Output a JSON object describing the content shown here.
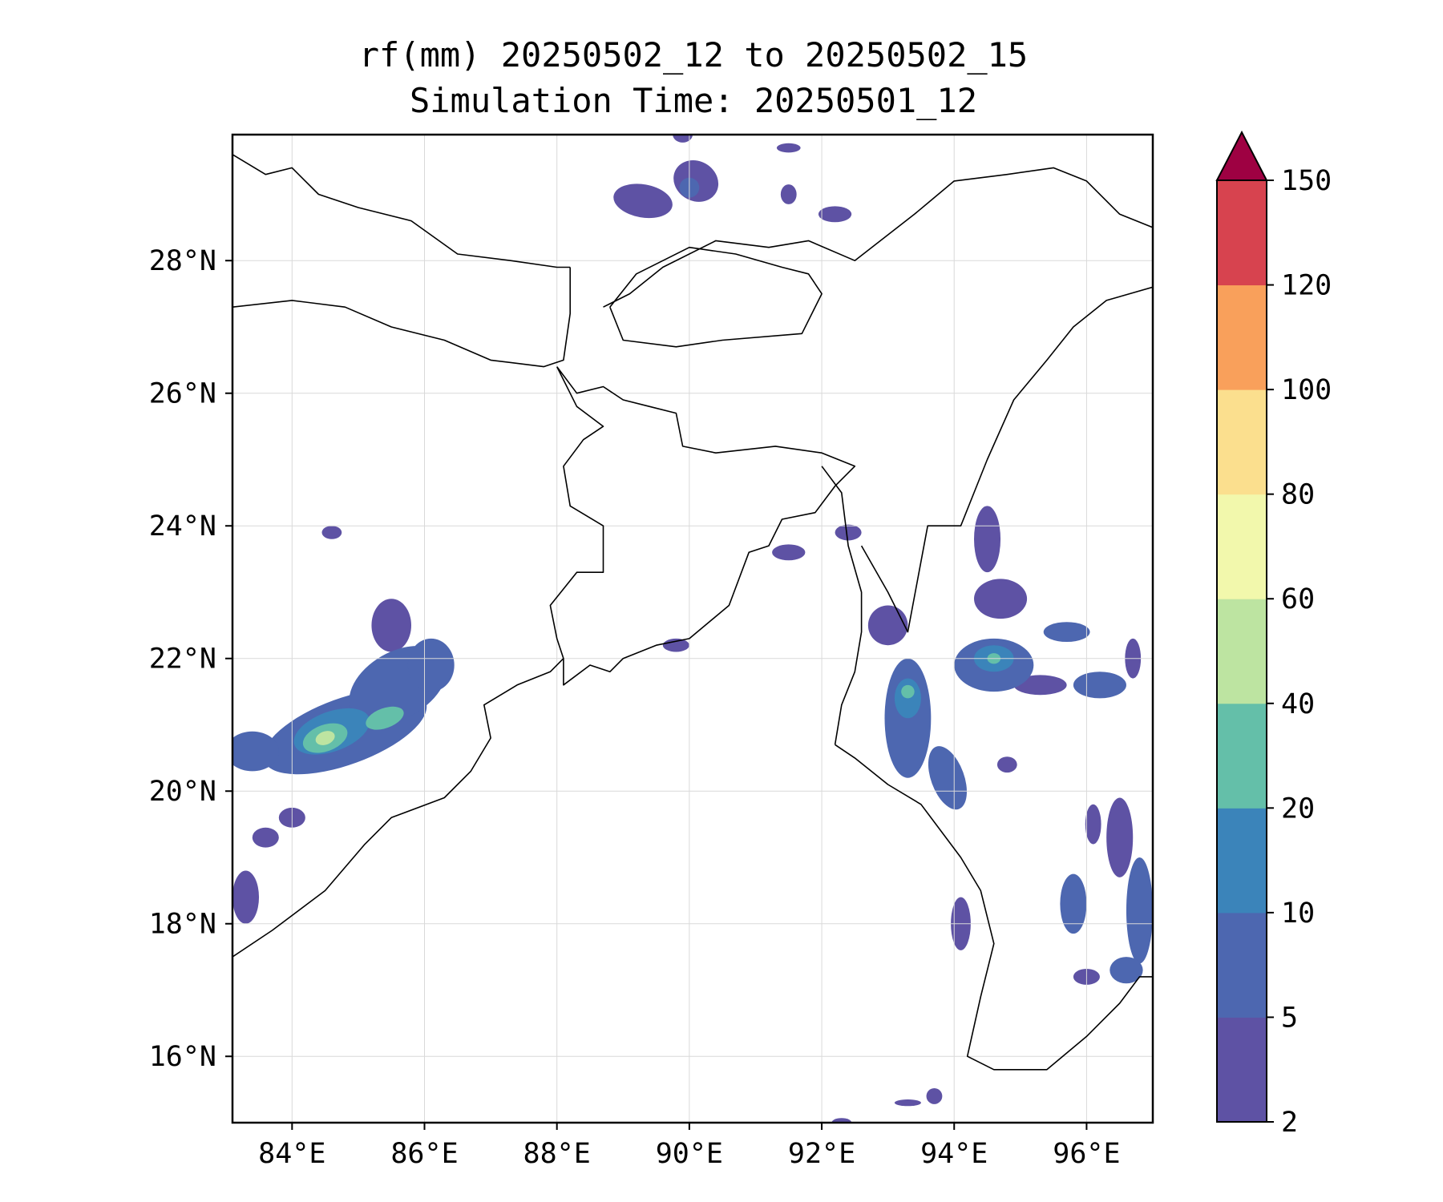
{
  "chart_data": {
    "type": "heatmap",
    "title": "rf(mm) 20250502_12 to 20250502_15",
    "subtitle": "Simulation Time: 20250501_12",
    "xlabel": "",
    "ylabel": "",
    "xlim": [
      83.1,
      97.0
    ],
    "ylim": [
      15.0,
      29.9
    ],
    "grid": true,
    "x_ticks": [
      {
        "value": 84,
        "label": "84°E"
      },
      {
        "value": 86,
        "label": "86°E"
      },
      {
        "value": 88,
        "label": "88°E"
      },
      {
        "value": 90,
        "label": "90°E"
      },
      {
        "value": 92,
        "label": "92°E"
      },
      {
        "value": 94,
        "label": "94°E"
      },
      {
        "value": 96,
        "label": "96°E"
      }
    ],
    "y_ticks": [
      {
        "value": 16,
        "label": "16°N"
      },
      {
        "value": 18,
        "label": "18°N"
      },
      {
        "value": 20,
        "label": "20°N"
      },
      {
        "value": 22,
        "label": "22°N"
      },
      {
        "value": 24,
        "label": "24°N"
      },
      {
        "value": 26,
        "label": "26°N"
      },
      {
        "value": 28,
        "label": "28°N"
      }
    ],
    "colorbar": {
      "levels": [
        2,
        5,
        10,
        20,
        40,
        60,
        80,
        100,
        120,
        150
      ],
      "labels": [
        "2",
        "5",
        "10",
        "20",
        "40",
        "60",
        "80",
        "100",
        "120",
        "150"
      ],
      "colors": [
        "#5e52a4",
        "#4d67b0",
        "#3b84ba",
        "#64bfa9",
        "#bde4a1",
        "#f2f8ac",
        "#fbdf8e",
        "#f9a05b",
        "#d7434f"
      ],
      "extend_color": "#9e0142"
    },
    "rain_cells": [
      {
        "lon": 84.8,
        "lat": 20.9,
        "rx": 1.3,
        "ry": 0.5,
        "rot": -20,
        "level": 1
      },
      {
        "lon": 85.6,
        "lat": 21.6,
        "rx": 0.8,
        "ry": 0.5,
        "rot": -30,
        "level": 1
      },
      {
        "lon": 84.6,
        "lat": 20.9,
        "rx": 0.6,
        "ry": 0.3,
        "rot": -20,
        "level": 2
      },
      {
        "lon": 84.5,
        "lat": 20.8,
        "rx": 0.35,
        "ry": 0.2,
        "rot": -20,
        "level": 3
      },
      {
        "lon": 84.5,
        "lat": 20.8,
        "rx": 0.15,
        "ry": 0.1,
        "rot": -20,
        "level": 4
      },
      {
        "lon": 85.4,
        "lat": 21.1,
        "rx": 0.3,
        "ry": 0.15,
        "rot": -20,
        "level": 3
      },
      {
        "lon": 83.4,
        "lat": 20.6,
        "rx": 0.4,
        "ry": 0.3,
        "rot": 0,
        "level": 1
      },
      {
        "lon": 86.1,
        "lat": 21.9,
        "rx": 0.35,
        "ry": 0.4,
        "rot": 0,
        "level": 1
      },
      {
        "lon": 85.5,
        "lat": 22.5,
        "rx": 0.3,
        "ry": 0.4,
        "rot": 0,
        "level": 0
      },
      {
        "lon": 83.3,
        "lat": 18.4,
        "rx": 0.2,
        "ry": 0.4,
        "rot": 0,
        "level": 0
      },
      {
        "lon": 83.6,
        "lat": 19.3,
        "rx": 0.2,
        "ry": 0.15,
        "rot": 0,
        "level": 0
      },
      {
        "lon": 84.0,
        "lat": 19.6,
        "rx": 0.2,
        "ry": 0.15,
        "rot": 0,
        "level": 0
      },
      {
        "lon": 84.6,
        "lat": 23.9,
        "rx": 0.15,
        "ry": 0.1,
        "rot": 0,
        "level": 0
      },
      {
        "lon": 93.3,
        "lat": 21.1,
        "rx": 0.35,
        "ry": 0.9,
        "rot": 0,
        "level": 1
      },
      {
        "lon": 93.3,
        "lat": 21.4,
        "rx": 0.2,
        "ry": 0.3,
        "rot": 0,
        "level": 2
      },
      {
        "lon": 93.3,
        "lat": 21.5,
        "rx": 0.1,
        "ry": 0.1,
        "rot": 0,
        "level": 3
      },
      {
        "lon": 93.9,
        "lat": 20.2,
        "rx": 0.25,
        "ry": 0.5,
        "rot": -20,
        "level": 1
      },
      {
        "lon": 93.0,
        "lat": 22.5,
        "rx": 0.3,
        "ry": 0.3,
        "rot": 0,
        "level": 0
      },
      {
        "lon": 94.6,
        "lat": 21.9,
        "rx": 0.6,
        "ry": 0.4,
        "rot": 0,
        "level": 1
      },
      {
        "lon": 94.6,
        "lat": 22.0,
        "rx": 0.3,
        "ry": 0.2,
        "rot": 0,
        "level": 2
      },
      {
        "lon": 94.6,
        "lat": 22.0,
        "rx": 0.1,
        "ry": 0.08,
        "rot": 0,
        "level": 3
      },
      {
        "lon": 94.7,
        "lat": 22.9,
        "rx": 0.4,
        "ry": 0.3,
        "rot": 0,
        "level": 0
      },
      {
        "lon": 94.5,
        "lat": 23.8,
        "rx": 0.2,
        "ry": 0.5,
        "rot": 0,
        "level": 0
      },
      {
        "lon": 95.7,
        "lat": 22.4,
        "rx": 0.35,
        "ry": 0.15,
        "rot": 0,
        "level": 1
      },
      {
        "lon": 96.2,
        "lat": 21.6,
        "rx": 0.4,
        "ry": 0.2,
        "rot": 0,
        "level": 1
      },
      {
        "lon": 96.7,
        "lat": 22.0,
        "rx": 0.12,
        "ry": 0.3,
        "rot": 0,
        "level": 0
      },
      {
        "lon": 95.3,
        "lat": 21.6,
        "rx": 0.4,
        "ry": 0.15,
        "rot": 0,
        "level": 0
      },
      {
        "lon": 95.8,
        "lat": 18.3,
        "rx": 0.2,
        "ry": 0.45,
        "rot": 0,
        "level": 1
      },
      {
        "lon": 96.8,
        "lat": 18.2,
        "rx": 0.2,
        "ry": 0.8,
        "rot": 0,
        "level": 1
      },
      {
        "lon": 96.5,
        "lat": 19.3,
        "rx": 0.2,
        "ry": 0.6,
        "rot": 0,
        "level": 0
      },
      {
        "lon": 96.1,
        "lat": 19.5,
        "rx": 0.12,
        "ry": 0.3,
        "rot": 0,
        "level": 0
      },
      {
        "lon": 96.6,
        "lat": 17.3,
        "rx": 0.25,
        "ry": 0.2,
        "rot": 0,
        "level": 1
      },
      {
        "lon": 96.0,
        "lat": 17.2,
        "rx": 0.2,
        "ry": 0.12,
        "rot": 0,
        "level": 0
      },
      {
        "lon": 94.1,
        "lat": 18.0,
        "rx": 0.15,
        "ry": 0.4,
        "rot": 0,
        "level": 0
      },
      {
        "lon": 94.8,
        "lat": 20.4,
        "rx": 0.15,
        "ry": 0.12,
        "rot": 0,
        "level": 0
      },
      {
        "lon": 89.3,
        "lat": 28.9,
        "rx": 0.45,
        "ry": 0.25,
        "rot": 10,
        "level": 0
      },
      {
        "lon": 90.1,
        "lat": 29.2,
        "rx": 0.35,
        "ry": 0.3,
        "rot": 30,
        "level": 0
      },
      {
        "lon": 90.0,
        "lat": 29.1,
        "rx": 0.15,
        "ry": 0.15,
        "rot": 30,
        "level": 1
      },
      {
        "lon": 92.2,
        "lat": 28.7,
        "rx": 0.25,
        "ry": 0.12,
        "rot": 0,
        "level": 0
      },
      {
        "lon": 91.5,
        "lat": 29.0,
        "rx": 0.12,
        "ry": 0.15,
        "rot": 0,
        "level": 0
      },
      {
        "lon": 91.5,
        "lat": 29.7,
        "rx": 0.18,
        "ry": 0.07,
        "rot": 0,
        "level": 0
      },
      {
        "lon": 89.9,
        "lat": 29.9,
        "rx": 0.15,
        "ry": 0.12,
        "rot": 0,
        "level": 0
      },
      {
        "lon": 92.4,
        "lat": 23.9,
        "rx": 0.2,
        "ry": 0.12,
        "rot": 0,
        "level": 0
      },
      {
        "lon": 91.5,
        "lat": 23.6,
        "rx": 0.25,
        "ry": 0.12,
        "rot": 0,
        "level": 0
      },
      {
        "lon": 89.8,
        "lat": 22.2,
        "rx": 0.2,
        "ry": 0.1,
        "rot": 0,
        "level": 0
      },
      {
        "lon": 93.7,
        "lat": 15.4,
        "rx": 0.12,
        "ry": 0.12,
        "rot": 0,
        "level": 0
      },
      {
        "lon": 92.3,
        "lat": 15.0,
        "rx": 0.15,
        "ry": 0.07,
        "rot": 0,
        "level": 0
      },
      {
        "lon": 93.3,
        "lat": 15.3,
        "rx": 0.2,
        "ry": 0.05,
        "rot": 0,
        "level": 0
      }
    ],
    "boundaries": [
      [
        [
          83.1,
          29.6
        ],
        [
          83.6,
          29.3
        ],
        [
          84.0,
          29.4
        ],
        [
          84.4,
          29.0
        ],
        [
          85.0,
          28.8
        ],
        [
          85.8,
          28.6
        ],
        [
          86.5,
          28.1
        ],
        [
          87.3,
          28.0
        ],
        [
          88.0,
          27.9
        ],
        [
          88.2,
          27.9
        ]
      ],
      [
        [
          83.1,
          27.3
        ],
        [
          84.0,
          27.4
        ],
        [
          84.8,
          27.3
        ],
        [
          85.5,
          27.0
        ],
        [
          86.3,
          26.8
        ],
        [
          87.0,
          26.5
        ],
        [
          87.8,
          26.4
        ],
        [
          88.1,
          26.5
        ],
        [
          88.2,
          27.2
        ],
        [
          88.2,
          27.9
        ]
      ],
      [
        [
          88.8,
          27.3
        ],
        [
          89.2,
          27.8
        ],
        [
          90.0,
          28.2
        ],
        [
          90.7,
          28.1
        ],
        [
          91.4,
          27.9
        ],
        [
          91.8,
          27.8
        ],
        [
          92.0,
          27.5
        ],
        [
          91.7,
          26.9
        ],
        [
          90.5,
          26.8
        ],
        [
          89.8,
          26.7
        ],
        [
          89.0,
          26.8
        ],
        [
          88.8,
          27.3
        ]
      ],
      [
        [
          88.7,
          27.3
        ],
        [
          89.1,
          27.5
        ],
        [
          89.6,
          27.9
        ],
        [
          90.4,
          28.3
        ],
        [
          91.2,
          28.2
        ],
        [
          91.8,
          28.3
        ],
        [
          92.5,
          28.0
        ],
        [
          93.4,
          28.7
        ],
        [
          94.0,
          29.2
        ],
        [
          94.8,
          29.3
        ],
        [
          95.5,
          29.4
        ],
        [
          96.0,
          29.2
        ],
        [
          96.5,
          28.7
        ],
        [
          97.0,
          28.5
        ]
      ],
      [
        [
          88.0,
          26.4
        ],
        [
          88.3,
          26.0
        ],
        [
          88.7,
          26.1
        ],
        [
          89.0,
          25.9
        ],
        [
          89.4,
          25.8
        ],
        [
          89.8,
          25.7
        ],
        [
          89.9,
          25.2
        ],
        [
          90.4,
          25.1
        ],
        [
          91.3,
          25.2
        ],
        [
          92.0,
          25.1
        ],
        [
          92.5,
          24.9
        ],
        [
          92.2,
          24.6
        ],
        [
          91.9,
          24.2
        ],
        [
          91.4,
          24.1
        ],
        [
          91.2,
          23.7
        ],
        [
          90.9,
          23.6
        ],
        [
          90.6,
          22.8
        ],
        [
          90.0,
          22.3
        ],
        [
          89.5,
          22.2
        ],
        [
          89.0,
          22.0
        ],
        [
          88.8,
          21.8
        ],
        [
          88.5,
          21.9
        ],
        [
          88.1,
          21.6
        ],
        [
          88.1,
          22.0
        ],
        [
          88.0,
          22.3
        ],
        [
          87.9,
          22.8
        ],
        [
          88.3,
          23.3
        ],
        [
          88.7,
          23.3
        ],
        [
          88.7,
          24.0
        ],
        [
          88.2,
          24.3
        ],
        [
          88.1,
          24.9
        ],
        [
          88.4,
          25.3
        ],
        [
          88.7,
          25.5
        ],
        [
          88.3,
          25.8
        ],
        [
          88.0,
          26.4
        ]
      ],
      [
        [
          92.0,
          24.9
        ],
        [
          92.3,
          24.5
        ],
        [
          92.4,
          23.7
        ],
        [
          92.6,
          23.0
        ],
        [
          92.6,
          22.4
        ],
        [
          92.5,
          21.8
        ],
        [
          92.3,
          21.3
        ],
        [
          92.2,
          20.7
        ]
      ],
      [
        [
          92.6,
          23.7
        ],
        [
          93.0,
          23.0
        ],
        [
          93.3,
          22.4
        ],
        [
          93.6,
          24.0
        ],
        [
          94.1,
          24.0
        ],
        [
          94.5,
          25.0
        ],
        [
          94.9,
          25.9
        ],
        [
          95.4,
          26.5
        ],
        [
          95.8,
          27.0
        ],
        [
          96.3,
          27.4
        ],
        [
          97.0,
          27.6
        ]
      ],
      [
        [
          92.2,
          20.7
        ],
        [
          92.5,
          20.5
        ],
        [
          93.0,
          20.1
        ],
        [
          93.5,
          19.8
        ],
        [
          94.1,
          19.0
        ],
        [
          94.4,
          18.5
        ],
        [
          94.6,
          17.7
        ],
        [
          94.4,
          16.9
        ],
        [
          94.2,
          16.0
        ],
        [
          94.6,
          15.8
        ],
        [
          95.4,
          15.8
        ],
        [
          96.0,
          16.3
        ],
        [
          96.5,
          16.8
        ],
        [
          96.8,
          17.2
        ],
        [
          97.0,
          17.2
        ]
      ],
      [
        [
          83.1,
          17.5
        ],
        [
          83.7,
          17.9
        ],
        [
          84.5,
          18.5
        ],
        [
          85.1,
          19.2
        ],
        [
          85.5,
          19.6
        ],
        [
          86.3,
          19.9
        ],
        [
          86.7,
          20.3
        ],
        [
          87.0,
          20.8
        ],
        [
          86.9,
          21.3
        ],
        [
          87.4,
          21.6
        ],
        [
          87.9,
          21.8
        ],
        [
          88.1,
          22.0
        ]
      ]
    ]
  }
}
